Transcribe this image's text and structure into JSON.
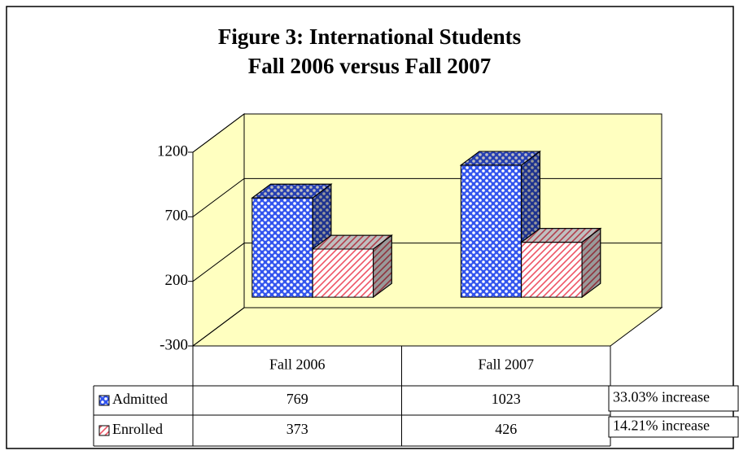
{
  "chart_data": {
    "type": "bar3d",
    "title": "Figure 3:  International Students",
    "subtitle": "Fall 2006 versus Fall 2007",
    "categories": [
      "Fall 2006",
      "Fall 2007"
    ],
    "series": [
      {
        "name": "Admitted",
        "color": "#3355ee",
        "values": [
          769,
          1023
        ]
      },
      {
        "name": "Enrolled",
        "color": "#ee5566",
        "values": [
          373,
          426
        ]
      }
    ],
    "ylim": [
      -300,
      1200
    ],
    "yticks": [
      -300,
      200,
      700,
      1200
    ],
    "grid": true,
    "annotations": [
      "33.03% increase",
      "14.21% increase"
    ]
  }
}
